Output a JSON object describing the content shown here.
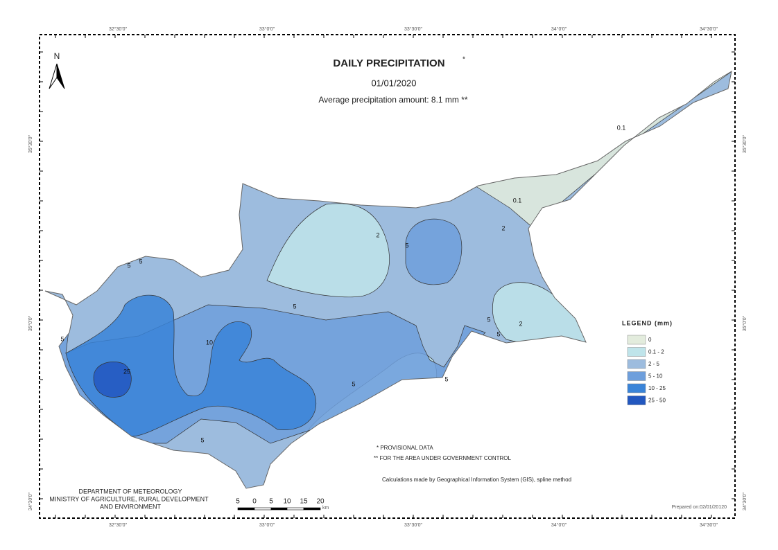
{
  "title": {
    "text": "DAILY PRECIPITATION",
    "mark": "*",
    "date": "01/01/2020",
    "average": "Average precipitation amount: 8.1 mm **"
  },
  "north": "N",
  "graticule": {
    "longitudes": [
      "32°30'0\"",
      "33°0'0\"",
      "33°30'0\"",
      "34°0'0\"",
      "34°30'0\""
    ],
    "latitudes": [
      "35°30'0\"",
      "35°0'0\"",
      "34°30'0\""
    ]
  },
  "legend": {
    "title": "LEGEND (mm)",
    "items": [
      {
        "label": "0",
        "color": "#e3ecdd"
      },
      {
        "label": "0.1 - 2",
        "color": "#bfe4ea"
      },
      {
        "label": "2 - 5",
        "color": "#9dbcde"
      },
      {
        "label": "5 - 10",
        "color": "#6e9fdc"
      },
      {
        "label": "10 - 25",
        "color": "#3a84d8"
      },
      {
        "label": "25 - 50",
        "color": "#2257bf"
      }
    ]
  },
  "contour_labels": [
    "5",
    "10",
    "25",
    "5",
    "5",
    "5",
    "2",
    "5",
    "0.1",
    "0.1",
    "2",
    "2",
    "5",
    "5",
    "5",
    "5",
    "5"
  ],
  "notes": [
    "* PROVISIONAL DATA",
    "** FOR THE AREA UNDER GOVERNMENT CONTROL",
    "Calculations made by Geographical Information System (GIS), spline method"
  ],
  "department": [
    "DEPARTMENT OF METEOROLOGY",
    "MINISTRY OF AGRICULTURE, RURAL DEVELOPMENT",
    "AND ENVIRONMENT"
  ],
  "scale_bar": {
    "labels": [
      "5",
      "0",
      "5",
      "10",
      "15",
      "20"
    ],
    "unit": "km"
  },
  "prepared": "Prepared on:02/01/20120"
}
